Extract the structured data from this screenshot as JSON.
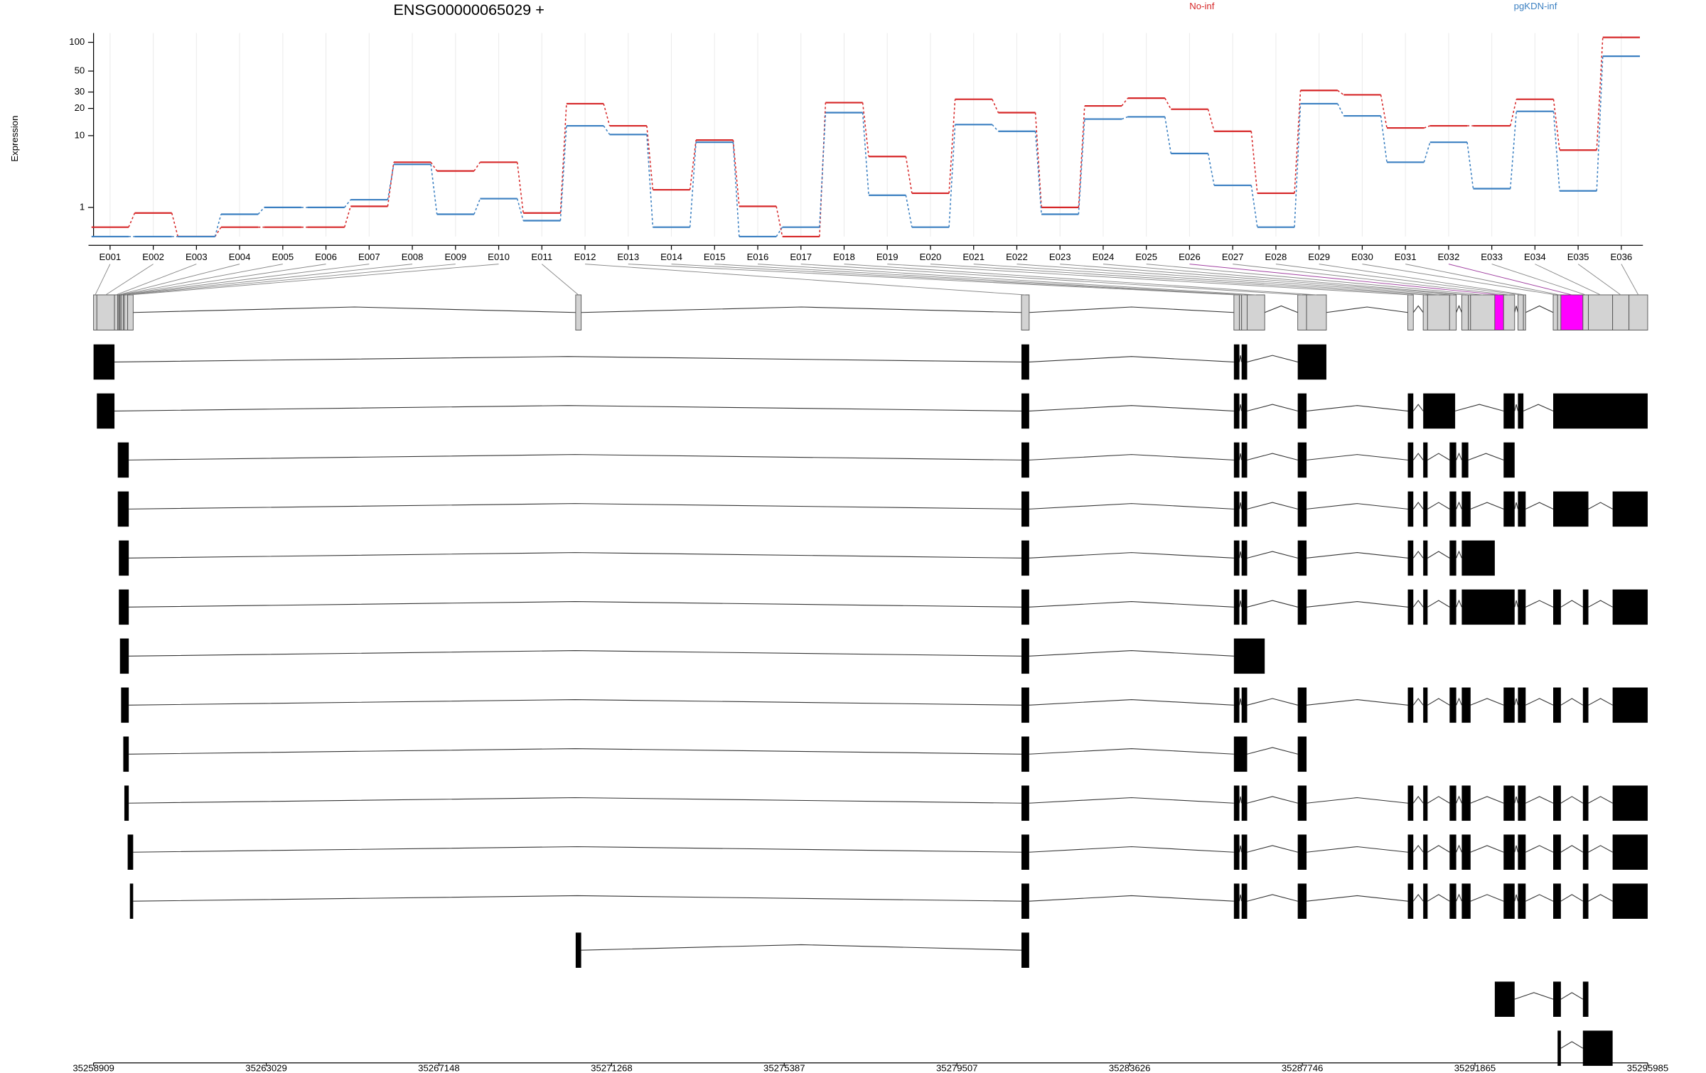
{
  "chart_data": [
    {
      "type": "line",
      "title": "ENSG00000065029 +",
      "ylabel": "Expression",
      "yscale": "log1p",
      "grid": true,
      "legend": "top",
      "categories": [
        "E001",
        "E002",
        "E003",
        "E004",
        "E005",
        "E006",
        "E007",
        "E008",
        "E009",
        "E010",
        "E011",
        "E012",
        "E013",
        "E014",
        "E015",
        "E016",
        "E017",
        "E018",
        "E019",
        "E020",
        "E021",
        "E022",
        "E023",
        "E024",
        "E025",
        "E026",
        "E027",
        "E028",
        "E029",
        "E030",
        "E031",
        "E032",
        "E033",
        "E034",
        "E035",
        "E036"
      ],
      "series": [
        {
          "name": "No-inf",
          "color": "#d62728",
          "values": [
            0.25,
            0.75,
            0,
            0.25,
            0.25,
            0.25,
            1.05,
            4.85,
            3.75,
            4.85,
            0.75,
            22.5,
            12.9,
            2.04,
            8.9,
            1.05,
            0,
            23.1,
            5.7,
            1.8,
            25.1,
            18,
            1.0,
            21.3,
            25.8,
            19.6,
            11.2,
            1.8,
            31.2,
            28,
            12.2,
            12.9,
            12.9,
            25.1,
            6.8,
            112.5
          ]
        },
        {
          "name": "pgKDN-inf",
          "color": "#3a7fc1",
          "values": [
            0,
            0,
            0,
            0.7,
            1.0,
            1.0,
            1.4,
            4.56,
            0.7,
            1.46,
            0.46,
            12.9,
            10.3,
            0.25,
            8.4,
            0,
            0.25,
            18,
            1.67,
            0.25,
            13.3,
            11.2,
            0.7,
            15.3,
            16.2,
            6.2,
            2.38,
            0.25,
            22.5,
            16.6,
            4.85,
            8.4,
            2.12,
            18.6,
            1.96,
            71.6
          ]
        }
      ],
      "ylim": [
        0,
        125
      ],
      "yticks": [
        1,
        10,
        20,
        30,
        50,
        100
      ]
    },
    {
      "type": "gene-model",
      "xlim": [
        35258909,
        35295985
      ],
      "xticks": [
        35258909,
        35263029,
        35267148,
        35271268,
        35275387,
        35279507,
        35283626,
        35287746,
        35291865,
        35295985
      ],
      "exon_color": "#d3d3d3",
      "highlight": {
        "indices": [
          25,
          31
        ],
        "color": "#ff00ff"
      },
      "transcript_color": "#000000",
      "exon_parts": [
        [
          35258909,
          35258988
        ],
        [
          35258988,
          35259408
        ],
        [
          35259408,
          35259487
        ],
        [
          35259487,
          35259513
        ],
        [
          35259513,
          35259539
        ],
        [
          35259539,
          35259566
        ],
        [
          35259566,
          35259618
        ],
        [
          35259618,
          35259644
        ],
        [
          35259644,
          35259723
        ],
        [
          35259723,
          35259854
        ],
        [
          35270411,
          35270542
        ],
        [
          35281046,
          35281230
        ],
        [
          35286114,
          35286245
        ],
        [
          35286245,
          35286298
        ],
        [
          35286298,
          35286430
        ],
        [
          35286430,
          35286849
        ],
        [
          35287637,
          35287847
        ],
        [
          35287847,
          35288320
        ],
        [
          35290263,
          35290394
        ],
        [
          35290630,
          35290735
        ],
        [
          35290735,
          35291260
        ],
        [
          35291260,
          35291418
        ],
        [
          35291550,
          35291707
        ],
        [
          35291707,
          35291760
        ],
        [
          35291760,
          35292338
        ],
        [
          35292338,
          35292548
        ],
        [
          35292548,
          35292811
        ],
        [
          35292890,
          35293021
        ],
        [
          35293021,
          35293074
        ],
        [
          35293731,
          35293836
        ],
        [
          35293836,
          35293915
        ],
        [
          35293915,
          35294440
        ],
        [
          35294440,
          35294571
        ],
        [
          35294571,
          35295149
        ],
        [
          35295149,
          35295539
        ],
        [
          35295539,
          35295985
        ]
      ],
      "transcripts": [
        [
          [
            35258909,
            35259408
          ],
          [
            35281046,
            35281230
          ],
          [
            35286114,
            35286245
          ],
          [
            35286298,
            35286430
          ],
          [
            35287637,
            35288320
          ]
        ],
        [
          [
            35258988,
            35259408
          ],
          [
            35281046,
            35281230
          ],
          [
            35286114,
            35286245
          ],
          [
            35286298,
            35286430
          ],
          [
            35287637,
            35287847
          ],
          [
            35290263,
            35290394
          ],
          [
            35290630,
            35291392
          ],
          [
            35292548,
            35292811
          ],
          [
            35292890,
            35293021
          ],
          [
            35293731,
            35295985
          ]
        ],
        [
          [
            35259487,
            35259749
          ],
          [
            35281046,
            35281230
          ],
          [
            35286114,
            35286245
          ],
          [
            35286298,
            35286430
          ],
          [
            35287637,
            35287847
          ],
          [
            35290263,
            35290394
          ],
          [
            35290630,
            35290735
          ],
          [
            35291260,
            35291418
          ],
          [
            35291550,
            35291707
          ],
          [
            35292548,
            35292811
          ]
        ],
        [
          [
            35259487,
            35259749
          ],
          [
            35281046,
            35281230
          ],
          [
            35286114,
            35286245
          ],
          [
            35286298,
            35286430
          ],
          [
            35287637,
            35287847
          ],
          [
            35290263,
            35290394
          ],
          [
            35290630,
            35290735
          ],
          [
            35291260,
            35291418
          ],
          [
            35291550,
            35291760
          ],
          [
            35292548,
            35292811
          ],
          [
            35292890,
            35293074
          ],
          [
            35293731,
            35294571
          ],
          [
            35295149,
            35295985
          ]
        ],
        [
          [
            35259513,
            35259749
          ],
          [
            35281046,
            35281230
          ],
          [
            35286114,
            35286245
          ],
          [
            35286298,
            35286430
          ],
          [
            35287637,
            35287847
          ],
          [
            35290263,
            35290394
          ],
          [
            35290630,
            35290735
          ],
          [
            35291260,
            35291418
          ],
          [
            35291550,
            35292338
          ]
        ],
        [
          [
            35259513,
            35259749
          ],
          [
            35281046,
            35281230
          ],
          [
            35286114,
            35286245
          ],
          [
            35286298,
            35286430
          ],
          [
            35287637,
            35287847
          ],
          [
            35290263,
            35290394
          ],
          [
            35290630,
            35290735
          ],
          [
            35291260,
            35291418
          ],
          [
            35291550,
            35292811
          ],
          [
            35292890,
            35293074
          ],
          [
            35293731,
            35293915
          ],
          [
            35294440,
            35294571
          ],
          [
            35295149,
            35295985
          ]
        ],
        [
          [
            35259539,
            35259749
          ],
          [
            35281046,
            35281230
          ],
          [
            35286114,
            35286849
          ]
        ],
        [
          [
            35259566,
            35259749
          ],
          [
            35281046,
            35281230
          ],
          [
            35286114,
            35286245
          ],
          [
            35286298,
            35286430
          ],
          [
            35287637,
            35287847
          ],
          [
            35290263,
            35290394
          ],
          [
            35290630,
            35290735
          ],
          [
            35291260,
            35291418
          ],
          [
            35291550,
            35291760
          ],
          [
            35292548,
            35292811
          ],
          [
            35292890,
            35293074
          ],
          [
            35293731,
            35293915
          ],
          [
            35294440,
            35294571
          ],
          [
            35295149,
            35295985
          ]
        ],
        [
          [
            35259618,
            35259749
          ],
          [
            35281046,
            35281230
          ],
          [
            35286114,
            35286430
          ],
          [
            35287637,
            35287847
          ]
        ],
        [
          [
            35259644,
            35259749
          ],
          [
            35281046,
            35281230
          ],
          [
            35286114,
            35286245
          ],
          [
            35286298,
            35286430
          ],
          [
            35287637,
            35287847
          ],
          [
            35290263,
            35290394
          ],
          [
            35290630,
            35290735
          ],
          [
            35291260,
            35291418
          ],
          [
            35291550,
            35291760
          ],
          [
            35292548,
            35292811
          ],
          [
            35292890,
            35293074
          ],
          [
            35293731,
            35293915
          ],
          [
            35294440,
            35294571
          ],
          [
            35295149,
            35295985
          ]
        ],
        [
          [
            35259723,
            35259854
          ],
          [
            35281046,
            35281230
          ],
          [
            35286114,
            35286245
          ],
          [
            35286298,
            35286430
          ],
          [
            35287637,
            35287847
          ],
          [
            35290263,
            35290394
          ],
          [
            35290630,
            35290735
          ],
          [
            35291260,
            35291418
          ],
          [
            35291550,
            35291760
          ],
          [
            35292548,
            35292811
          ],
          [
            35292890,
            35293074
          ],
          [
            35293731,
            35293915
          ],
          [
            35294440,
            35294571
          ],
          [
            35295149,
            35295985
          ]
        ],
        [
          [
            35259776,
            35259854
          ],
          [
            35281046,
            35281230
          ],
          [
            35286114,
            35286245
          ],
          [
            35286298,
            35286430
          ],
          [
            35287637,
            35287847
          ],
          [
            35290263,
            35290394
          ],
          [
            35290630,
            35290735
          ],
          [
            35291260,
            35291418
          ],
          [
            35291550,
            35291760
          ],
          [
            35292548,
            35292811
          ],
          [
            35292890,
            35293074
          ],
          [
            35293731,
            35293915
          ],
          [
            35294440,
            35294571
          ],
          [
            35295149,
            35295985
          ]
        ],
        [
          [
            35270411,
            35270542
          ],
          [
            35281046,
            35281230
          ]
        ],
        [
          [
            35292338,
            35292811
          ],
          [
            35293731,
            35293915
          ],
          [
            35294440,
            35294571
          ]
        ],
        [
          [
            35293836,
            35293915
          ],
          [
            35294440,
            35295149
          ]
        ]
      ]
    }
  ]
}
